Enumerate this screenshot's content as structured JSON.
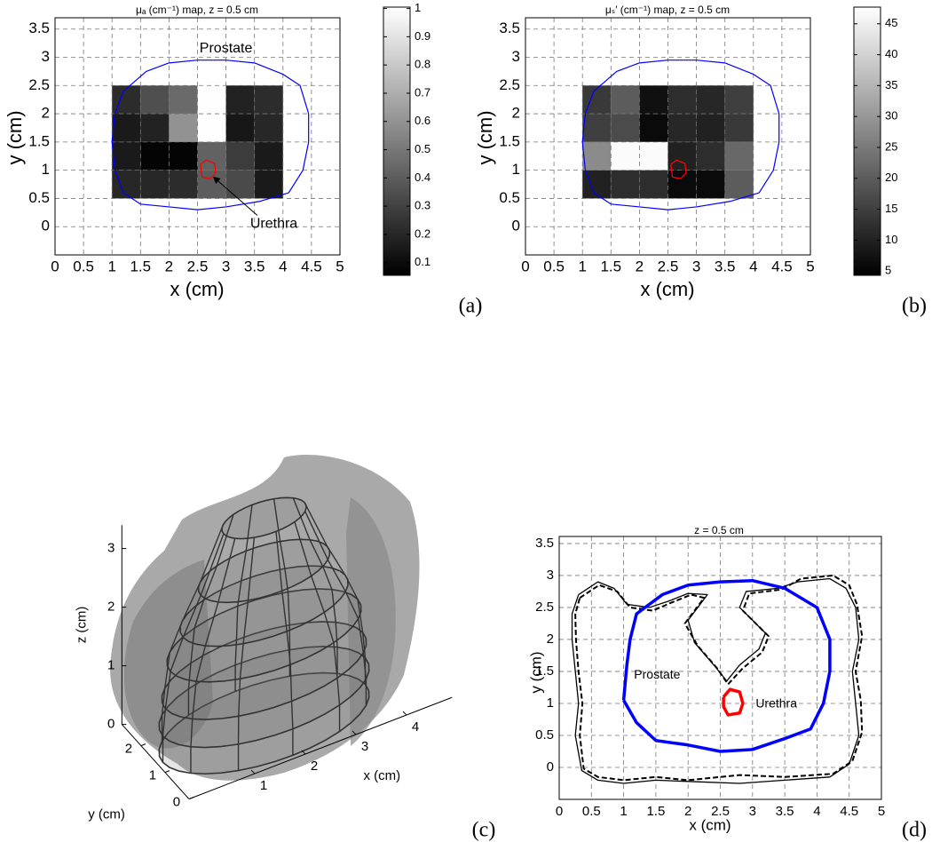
{
  "chart_data": [
    {
      "type": "heatmap",
      "title": "μₐ (cm⁻¹) map, z = 0.5 cm",
      "panel_label": "(a)",
      "xlabel": "x (cm)",
      "ylabel": "y (cm)",
      "xlim": [
        0,
        5
      ],
      "ylim": [
        -0.5,
        3.7
      ],
      "xticks": [
        0,
        0.5,
        1,
        1.5,
        2,
        2.5,
        3,
        3.5,
        4,
        4.5,
        5
      ],
      "yticks": [
        0,
        0.5,
        1,
        1.5,
        2,
        2.5,
        3,
        3.5
      ],
      "grid": true,
      "x": [
        1.25,
        1.75,
        2.25,
        2.75,
        3.25,
        3.75
      ],
      "y": [
        2.25,
        1.75,
        1.25,
        0.75
      ],
      "values": [
        [
          0.22,
          0.35,
          0.45,
          1.0,
          0.18,
          0.22
        ],
        [
          0.15,
          0.18,
          0.6,
          1.0,
          0.14,
          0.2
        ],
        [
          0.15,
          0.07,
          0.07,
          0.42,
          0.28,
          0.15
        ],
        [
          0.2,
          0.2,
          0.22,
          0.4,
          0.33,
          0.15
        ]
      ],
      "colormap": "gray",
      "clim": [
        0.055,
        1.005
      ],
      "cticks": [
        0.1,
        0.2,
        0.3,
        0.4,
        0.5,
        0.6,
        0.7,
        0.8,
        0.9,
        1
      ],
      "series": [
        {
          "color": "#0000ff",
          "style": "thin",
          "x": [
            1.05,
            1.2,
            1.6,
            2.0,
            2.5,
            3.0,
            3.5,
            4.0,
            4.3,
            4.45,
            4.45,
            4.35,
            4.1,
            3.6,
            3.0,
            2.5,
            2.0,
            1.5,
            1.2,
            1.05,
            1.0,
            1.05
          ],
          "y": [
            2.0,
            2.4,
            2.75,
            2.9,
            2.95,
            2.95,
            2.9,
            2.7,
            2.5,
            2.0,
            1.5,
            1.0,
            0.6,
            0.45,
            0.35,
            0.3,
            0.35,
            0.4,
            0.6,
            1.0,
            1.5,
            2.0
          ]
        },
        {
          "color": "#ff0000",
          "style": "solid",
          "x": [
            2.55,
            2.65,
            2.8,
            2.82,
            2.72,
            2.58,
            2.55
          ],
          "y": [
            1.1,
            1.18,
            1.12,
            0.95,
            0.85,
            0.88,
            1.1
          ]
        }
      ],
      "annotations": [
        {
          "text": "Prostate"
        },
        {
          "text": "Urethra",
          "arrow": true
        }
      ]
    },
    {
      "type": "heatmap",
      "title": "μₛ′ (cm⁻¹) map, z = 0.5 cm",
      "panel_label": "(b)",
      "xlabel": "x (cm)",
      "ylabel": "y (cm)",
      "xlim": [
        0,
        5
      ],
      "ylim": [
        -0.5,
        3.7
      ],
      "xticks": [
        0,
        0.5,
        1,
        1.5,
        2,
        2.5,
        3,
        3.5,
        4,
        4.5,
        5
      ],
      "yticks": [
        0,
        0.5,
        1,
        1.5,
        2,
        2.5,
        3,
        3.5
      ],
      "grid": true,
      "x": [
        1.25,
        1.75,
        2.25,
        2.75,
        3.25,
        3.75
      ],
      "y": [
        2.25,
        1.75,
        1.25,
        0.75
      ],
      "values": [
        [
          14,
          20,
          7,
          12,
          11,
          15
        ],
        [
          15,
          17,
          6,
          11,
          10,
          14
        ],
        [
          28,
          47,
          47,
          10,
          12,
          22
        ],
        [
          10,
          12,
          12,
          6,
          6,
          20
        ]
      ],
      "colormap": "gray",
      "clim": [
        4.3,
        47.7
      ],
      "cticks": [
        5,
        10,
        15,
        20,
        25,
        30,
        35,
        40,
        45
      ],
      "series": [
        {
          "color": "#0000ff",
          "style": "thin",
          "x": [
            1.05,
            1.2,
            1.6,
            2.0,
            2.5,
            3.0,
            3.5,
            4.0,
            4.3,
            4.45,
            4.45,
            4.35,
            4.1,
            3.6,
            3.0,
            2.5,
            2.0,
            1.5,
            1.2,
            1.05,
            1.0,
            1.05
          ],
          "y": [
            2.0,
            2.4,
            2.75,
            2.9,
            2.95,
            2.95,
            2.9,
            2.7,
            2.5,
            2.0,
            1.5,
            1.0,
            0.6,
            0.45,
            0.35,
            0.3,
            0.35,
            0.4,
            0.6,
            1.0,
            1.5,
            2.0
          ]
        },
        {
          "color": "#ff0000",
          "style": "solid",
          "x": [
            2.55,
            2.65,
            2.8,
            2.82,
            2.72,
            2.58,
            2.55
          ],
          "y": [
            1.1,
            1.18,
            1.12,
            0.95,
            0.85,
            0.88,
            1.1
          ]
        }
      ]
    },
    {
      "type": "surface3d",
      "panel_label": "(c)",
      "xlabel": "x (cm)",
      "ylabel": "y (cm)",
      "zlabel": "z (cm)",
      "xlim": [
        -0.3,
        4.9
      ],
      "ylim": [
        0,
        2.8
      ],
      "zlim": [
        0,
        3.4
      ],
      "xticks": [
        1,
        2,
        3,
        4
      ],
      "yticks": [
        0,
        1,
        2
      ],
      "zticks": [
        0,
        1,
        2,
        3
      ]
    },
    {
      "type": "line",
      "title": "z = 0.5 cm",
      "panel_label": "(d)",
      "xlabel": "x (cm)",
      "ylabel": "y (cm)",
      "xlim": [
        0,
        5
      ],
      "ylim": [
        -0.5,
        3.61
      ],
      "xticks": [
        0,
        0.5,
        1,
        1.5,
        2,
        2.5,
        3,
        3.5,
        4,
        4.5,
        5
      ],
      "yticks": [
        0,
        0.5,
        1,
        1.5,
        2,
        2.5,
        3,
        3.5
      ],
      "grid": true,
      "series": [
        {
          "color": "#000000",
          "style": "solid",
          "x": [
            0.3,
            0.6,
            0.85,
            1.05,
            1.4,
            1.7,
            2.0,
            2.3,
            2.0,
            2.1,
            2.4,
            2.6,
            2.8,
            3.1,
            3.2,
            3.0,
            2.8,
            2.9,
            3.4,
            3.7,
            4.2,
            4.45,
            4.6,
            4.65,
            4.55,
            4.6,
            4.65,
            4.5,
            4.2,
            3.5,
            2.8,
            2.0,
            1.5,
            1.0,
            0.6,
            0.35,
            0.25,
            0.3,
            0.25,
            0.2,
            0.2,
            0.3
          ],
          "y": [
            2.7,
            2.9,
            2.8,
            2.55,
            2.5,
            2.6,
            2.72,
            2.7,
            2.3,
            1.95,
            1.6,
            1.35,
            1.6,
            1.85,
            2.1,
            2.3,
            2.5,
            2.75,
            2.8,
            2.9,
            2.95,
            2.8,
            2.5,
            2.0,
            1.5,
            1.0,
            0.5,
            0.05,
            -0.15,
            -0.2,
            -0.25,
            -0.22,
            -0.2,
            -0.25,
            -0.2,
            -0.05,
            0.5,
            1.0,
            1.5,
            2.0,
            2.4,
            2.7
          ]
        },
        {
          "color": "#000000",
          "style": "dashed",
          "x": [
            0.32,
            0.62,
            0.9,
            1.1,
            1.45,
            1.75,
            2.05,
            2.25,
            1.95,
            2.15,
            2.45,
            2.62,
            2.85,
            3.15,
            3.25,
            3.05,
            2.85,
            2.95,
            3.45,
            3.75,
            4.25,
            4.5,
            4.62,
            4.7,
            4.6,
            4.68,
            4.7,
            4.55,
            4.25,
            3.5,
            2.8,
            2.0,
            1.5,
            1.0,
            0.6,
            0.38,
            0.32,
            0.36,
            0.3,
            0.26,
            0.25,
            0.32
          ],
          "y": [
            2.65,
            2.85,
            2.75,
            2.5,
            2.45,
            2.58,
            2.7,
            2.65,
            2.25,
            1.9,
            1.55,
            1.3,
            1.55,
            1.8,
            2.05,
            2.25,
            2.45,
            2.72,
            2.78,
            2.95,
            3.0,
            2.85,
            2.55,
            2.05,
            1.5,
            1.05,
            0.55,
            0.1,
            -0.1,
            -0.15,
            -0.12,
            -0.2,
            -0.15,
            -0.2,
            -0.15,
            -0.02,
            0.5,
            1.0,
            1.5,
            2.0,
            2.4,
            2.65
          ]
        },
        {
          "color": "#0000ff",
          "style": "thick",
          "x": [
            1.0,
            1.05,
            1.1,
            1.2,
            1.6,
            2.0,
            2.5,
            3.0,
            3.5,
            4.0,
            4.2,
            4.2,
            4.1,
            3.9,
            3.5,
            3.0,
            2.5,
            2.0,
            1.5,
            1.2,
            1.0
          ],
          "y": [
            1.05,
            1.6,
            2.0,
            2.4,
            2.7,
            2.85,
            2.9,
            2.92,
            2.8,
            2.5,
            2.0,
            1.5,
            1.0,
            0.6,
            0.45,
            0.28,
            0.25,
            0.35,
            0.42,
            0.7,
            1.05
          ]
        },
        {
          "color": "#ff0000",
          "style": "thick",
          "x": [
            2.55,
            2.65,
            2.8,
            2.85,
            2.8,
            2.62,
            2.55,
            2.55
          ],
          "y": [
            1.1,
            1.22,
            1.18,
            1.0,
            0.85,
            0.82,
            0.95,
            1.1
          ]
        }
      ],
      "annotations": [
        {
          "text": "Prostate"
        },
        {
          "text": "Urethra"
        }
      ]
    }
  ]
}
